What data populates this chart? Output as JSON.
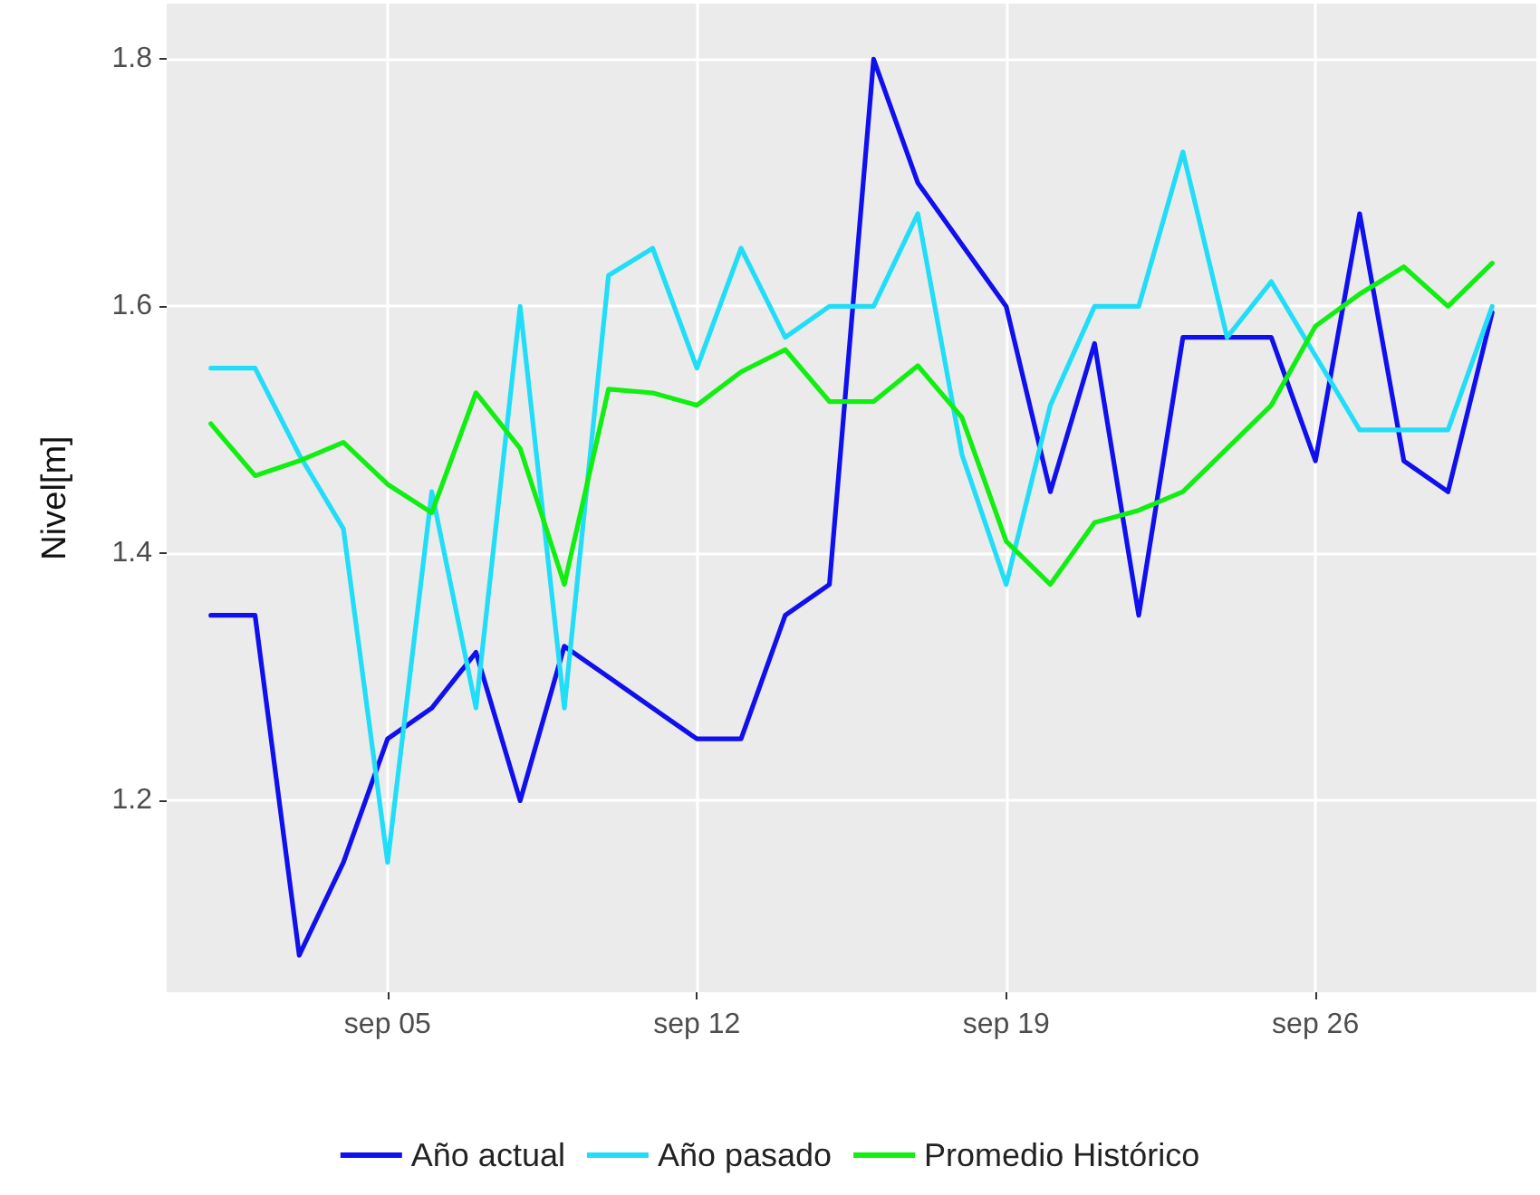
{
  "chart_data": {
    "type": "line",
    "ylabel": "Nivel[m]",
    "x": [
      "--09-01",
      "--09-02",
      "--09-03",
      "--09-04",
      "--09-05",
      "--09-06",
      "--09-07",
      "--09-08",
      "--09-09",
      "--09-10",
      "--09-11",
      "--09-12",
      "--09-13",
      "--09-14",
      "--09-15",
      "--09-16",
      "--09-17",
      "--09-18",
      "--09-19",
      "--09-20",
      "--09-21",
      "--09-22",
      "--09-23",
      "--09-24",
      "--09-25",
      "--09-26",
      "--09-27",
      "--09-28",
      "--09-29",
      "--09-30"
    ],
    "series": [
      {
        "name": "Año actual",
        "color": "#1010ee",
        "values": [
          1.35,
          1.35,
          1.075,
          1.15,
          1.25,
          1.275,
          1.32,
          1.2,
          1.325,
          1.3,
          1.275,
          1.25,
          1.25,
          1.35,
          1.375,
          1.8,
          1.7,
          1.65,
          1.6,
          1.45,
          1.57,
          1.35,
          1.575,
          1.575,
          1.575,
          1.475,
          1.675,
          1.475,
          1.45,
          1.595
        ]
      },
      {
        "name": "Año pasado",
        "color": "#22ddf8",
        "values": [
          1.55,
          1.55,
          1.48,
          1.42,
          1.15,
          1.45,
          1.275,
          1.6,
          1.275,
          1.625,
          1.647,
          1.55,
          1.647,
          1.575,
          1.6,
          1.6,
          1.675,
          1.48,
          1.375,
          1.52,
          1.6,
          1.6,
          1.725,
          1.575,
          1.62,
          1.56,
          1.5,
          1.5,
          1.5,
          1.6
        ]
      },
      {
        "name": "Promedio Histórico",
        "color": "#11ee11",
        "values": [
          1.505,
          1.463,
          1.475,
          1.49,
          1.456,
          1.433,
          1.53,
          1.485,
          1.375,
          1.533,
          1.53,
          1.52,
          1.547,
          1.565,
          1.523,
          1.523,
          1.552,
          1.51,
          1.41,
          1.375,
          1.425,
          1.435,
          1.45,
          1.485,
          1.52,
          1.584,
          1.61,
          1.632,
          1.6,
          1.635
        ]
      }
    ],
    "xlim": [
      "--08-31",
      "--10-01"
    ],
    "xticks": [
      {
        "value": "--09-05",
        "label": "sep 05"
      },
      {
        "value": "--09-12",
        "label": "sep 12"
      },
      {
        "value": "--09-19",
        "label": "sep 19"
      },
      {
        "value": "--09-26",
        "label": "sep 26"
      }
    ],
    "ylim": [
      1.045,
      1.845
    ],
    "yticks": [
      1.2,
      1.4,
      1.6,
      1.8
    ],
    "grid": true,
    "legend": "bottom",
    "marker": "none",
    "line_style": "solid"
  }
}
